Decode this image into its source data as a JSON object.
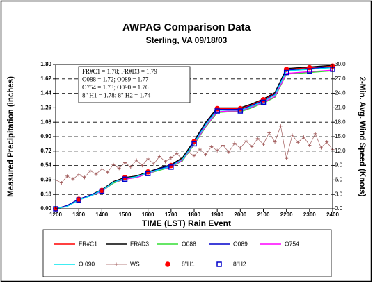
{
  "chart_data": {
    "type": "line",
    "title": "AWPAG Comparison Data",
    "subtitle": "Sterling, VA 09/18/03",
    "xlabel": "TIME (LST) Rain Event",
    "ylabel": "Measured Precipitation (inches)",
    "y2label": "2-Min. Avg. Wind Speed (Knots)",
    "annotations": [
      "FR#C1 = 1.78; FR#D3 = 1.79",
      "O088 = 1.72; O089 = 1.77",
      "O754 = 1.73; O090 = 1.76",
      "8\" H1 = 1.78; 8\" H2 = 1.74"
    ],
    "xlim": [
      1200,
      2400
    ],
    "xticks": [
      1200,
      1300,
      1400,
      1500,
      1600,
      1700,
      1800,
      1900,
      2000,
      2100,
      2200,
      2300,
      2400
    ],
    "ylim": [
      0,
      1.8
    ],
    "yticks": [
      {
        "value": 0,
        "label": "0.00"
      },
      {
        "value": 0.18,
        "label": "0.18"
      },
      {
        "value": 0.36,
        "label": "0.36"
      },
      {
        "value": 0.54,
        "label": "0.54"
      },
      {
        "value": 0.72,
        "label": "0.72"
      },
      {
        "value": 0.9,
        "label": "0.90"
      },
      {
        "value": 1.08,
        "label": "1.08"
      },
      {
        "value": 1.26,
        "label": "1.26"
      },
      {
        "value": 1.44,
        "label": "1.44"
      },
      {
        "value": 1.62,
        "label": "1.62"
      },
      {
        "value": 1.8,
        "label": "1.80"
      }
    ],
    "y2lim": [
      0,
      30
    ],
    "y2ticks": [
      {
        "value": 0,
        "label": "0.0"
      },
      {
        "value": 3,
        "label": "3.0"
      },
      {
        "value": 6,
        "label": "6.0"
      },
      {
        "value": 9,
        "label": "9.0"
      },
      {
        "value": 12,
        "label": "12.0"
      },
      {
        "value": 15,
        "label": "15.0"
      },
      {
        "value": 18,
        "label": "18.0"
      },
      {
        "value": 21,
        "label": "21.0"
      },
      {
        "value": 24,
        "label": "24.0"
      },
      {
        "value": 27,
        "label": "27.0"
      },
      {
        "value": 30,
        "label": "30.0"
      }
    ],
    "grid": true,
    "legend": "bottom",
    "series": [
      {
        "name": "FR#C1",
        "color": "#ff0000",
        "style": "line",
        "x": [
          1200,
          1250,
          1300,
          1350,
          1400,
          1450,
          1500,
          1550,
          1600,
          1650,
          1700,
          1750,
          1800,
          1850,
          1900,
          1950,
          2000,
          2050,
          2100,
          2150,
          2200,
          2250,
          2300,
          2350,
          2400
        ],
        "values": [
          0.0,
          0.04,
          0.12,
          0.17,
          0.23,
          0.34,
          0.39,
          0.41,
          0.46,
          0.5,
          0.54,
          0.63,
          0.84,
          1.07,
          1.25,
          1.25,
          1.25,
          1.3,
          1.36,
          1.44,
          1.74,
          1.75,
          1.76,
          1.77,
          1.78
        ]
      },
      {
        "name": "FR#D3",
        "color": "#000000",
        "style": "line",
        "x": [
          1200,
          1250,
          1300,
          1350,
          1400,
          1450,
          1500,
          1550,
          1600,
          1650,
          1700,
          1750,
          1800,
          1850,
          1900,
          1950,
          2000,
          2050,
          2100,
          2150,
          2200,
          2250,
          2300,
          2350,
          2400
        ],
        "values": [
          0.0,
          0.04,
          0.12,
          0.17,
          0.24,
          0.34,
          0.39,
          0.41,
          0.46,
          0.51,
          0.55,
          0.64,
          0.85,
          1.08,
          1.26,
          1.26,
          1.26,
          1.31,
          1.37,
          1.45,
          1.75,
          1.76,
          1.77,
          1.78,
          1.79
        ]
      },
      {
        "name": "O088",
        "color": "#33dd33",
        "style": "line",
        "x": [
          1200,
          1250,
          1300,
          1350,
          1400,
          1450,
          1500,
          1550,
          1600,
          1650,
          1700,
          1750,
          1800,
          1850,
          1900,
          1950,
          2000,
          2050,
          2100,
          2150,
          2200,
          2250,
          2300,
          2350,
          2400
        ],
        "values": [
          0.0,
          0.03,
          0.11,
          0.16,
          0.22,
          0.32,
          0.37,
          0.39,
          0.44,
          0.48,
          0.52,
          0.6,
          0.8,
          1.02,
          1.2,
          1.21,
          1.21,
          1.26,
          1.32,
          1.39,
          1.68,
          1.69,
          1.7,
          1.71,
          1.72
        ]
      },
      {
        "name": "O089",
        "color": "#0000cc",
        "style": "line",
        "x": [
          1200,
          1250,
          1300,
          1350,
          1400,
          1450,
          1500,
          1550,
          1600,
          1650,
          1700,
          1750,
          1800,
          1850,
          1900,
          1950,
          2000,
          2050,
          2100,
          2150,
          2200,
          2250,
          2300,
          2350,
          2400
        ],
        "values": [
          0.0,
          0.04,
          0.12,
          0.17,
          0.23,
          0.33,
          0.38,
          0.4,
          0.45,
          0.5,
          0.54,
          0.62,
          0.83,
          1.06,
          1.24,
          1.24,
          1.24,
          1.29,
          1.35,
          1.43,
          1.73,
          1.74,
          1.75,
          1.76,
          1.77
        ]
      },
      {
        "name": "O754",
        "color": "#ff00ff",
        "style": "line",
        "x": [
          1200,
          1250,
          1300,
          1350,
          1400,
          1450,
          1500,
          1550,
          1600,
          1650,
          1700,
          1750,
          1800,
          1850,
          1900,
          1950,
          2000,
          2050,
          2100,
          2150,
          2200,
          2250,
          2300,
          2350,
          2400
        ],
        "values": [
          0.0,
          0.03,
          0.11,
          0.16,
          0.22,
          0.33,
          0.37,
          0.39,
          0.44,
          0.49,
          0.52,
          0.61,
          0.81,
          1.03,
          1.21,
          1.22,
          1.22,
          1.27,
          1.33,
          1.4,
          1.69,
          1.7,
          1.71,
          1.72,
          1.73
        ]
      },
      {
        "name": "O 090",
        "color": "#00e5ee",
        "style": "line",
        "x": [
          1200,
          1250,
          1300,
          1350,
          1400,
          1450,
          1500,
          1550,
          1600,
          1650,
          1700,
          1750,
          1800,
          1850,
          1900,
          1950,
          2000,
          2050,
          2100,
          2150,
          2200,
          2250,
          2300,
          2350,
          2400
        ],
        "values": [
          0.0,
          0.03,
          0.11,
          0.16,
          0.23,
          0.33,
          0.38,
          0.4,
          0.45,
          0.49,
          0.53,
          0.62,
          0.82,
          1.05,
          1.23,
          1.23,
          1.23,
          1.28,
          1.34,
          1.42,
          1.72,
          1.73,
          1.74,
          1.75,
          1.76
        ]
      },
      {
        "name": "WS",
        "color": "#a05a5a",
        "style": "line-plus",
        "axis": "y2",
        "x": [
          1200,
          1225,
          1250,
          1275,
          1300,
          1325,
          1350,
          1375,
          1400,
          1425,
          1450,
          1475,
          1500,
          1525,
          1550,
          1575,
          1600,
          1625,
          1650,
          1675,
          1700,
          1725,
          1750,
          1775,
          1800,
          1825,
          1850,
          1875,
          1900,
          1925,
          1950,
          1975,
          2000,
          2025,
          2050,
          2075,
          2100,
          2125,
          2150,
          2175,
          2200,
          2225,
          2250,
          2275,
          2300,
          2325,
          2350,
          2375,
          2400
        ],
        "values": [
          6.0,
          5.4,
          6.8,
          6.2,
          7.1,
          6.5,
          7.9,
          7.2,
          8.3,
          7.6,
          9.2,
          8.4,
          9.6,
          8.7,
          10.1,
          9.0,
          10.4,
          9.3,
          10.9,
          9.8,
          10.6,
          11.5,
          10.2,
          11.8,
          11.0,
          12.4,
          11.3,
          12.9,
          12.1,
          13.2,
          11.8,
          13.6,
          12.6,
          14.1,
          12.9,
          14.6,
          13.4,
          15.8,
          13.9,
          17.2,
          10.5,
          15.3,
          13.8,
          14.9,
          13.2,
          15.6,
          12.7,
          13.9,
          12.3
        ]
      },
      {
        "name": "8\"H1",
        "color": "#ff0000",
        "style": "circle",
        "x": [
          1200,
          1300,
          1400,
          1500,
          1600,
          1700,
          1800,
          1900,
          2000,
          2100,
          2200,
          2300,
          2400
        ],
        "values": [
          0.0,
          0.12,
          0.23,
          0.39,
          0.46,
          0.54,
          0.84,
          1.25,
          1.25,
          1.36,
          1.74,
          1.76,
          1.78
        ]
      },
      {
        "name": "8\"H2",
        "color": "#0000cc",
        "style": "square",
        "x": [
          1200,
          1300,
          1400,
          1500,
          1600,
          1700,
          1800,
          1900,
          2000,
          2100,
          2200,
          2300,
          2400
        ],
        "values": [
          0.0,
          0.11,
          0.22,
          0.37,
          0.44,
          0.52,
          0.81,
          1.22,
          1.22,
          1.33,
          1.7,
          1.72,
          1.74
        ]
      }
    ]
  }
}
